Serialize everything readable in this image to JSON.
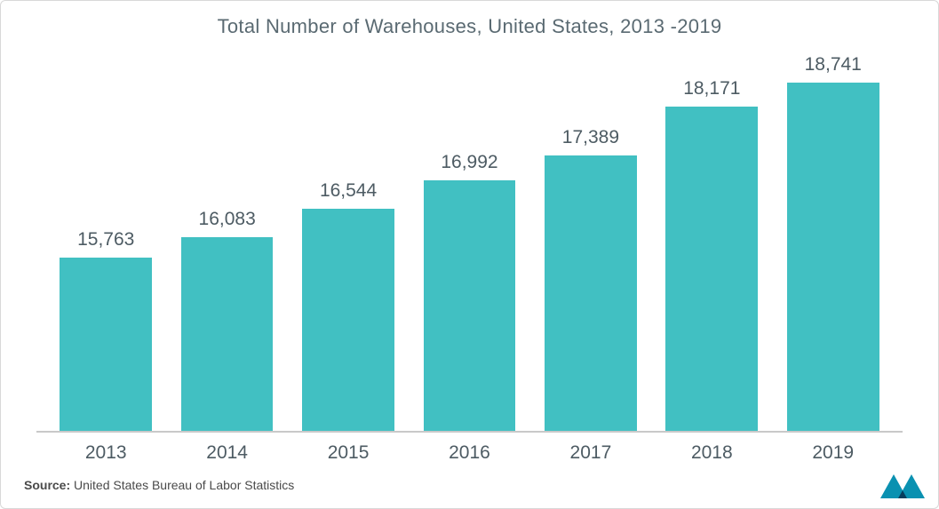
{
  "chart": {
    "type": "bar",
    "title": "Total Number of Warehouses, United States, 2013 -2019",
    "title_color": "#5a6a72",
    "title_fontsize": 22,
    "categories": [
      "2013",
      "2014",
      "2015",
      "2016",
      "2017",
      "2018",
      "2019"
    ],
    "values": [
      15763,
      16083,
      16544,
      16992,
      17389,
      18171,
      18741
    ],
    "value_labels": [
      "15,763",
      "16,083",
      "16,544",
      "16,992",
      "17,389",
      "18,171",
      "18,741"
    ],
    "bar_color": "#41c0c2",
    "background_color": "#ffffff",
    "axis_line_color": "#c9c9c9",
    "label_color": "#4d5b63",
    "label_fontsize": 21,
    "value_fontsize": 21,
    "ylim_top": 19000,
    "ylim_bottom": 13000,
    "bar_width_pct": 76
  },
  "source": {
    "label": "Source:",
    "text": "United States Bureau of Labor Statistics"
  },
  "logo": {
    "fill": "#0a91b1",
    "accent": "#083d5c"
  }
}
